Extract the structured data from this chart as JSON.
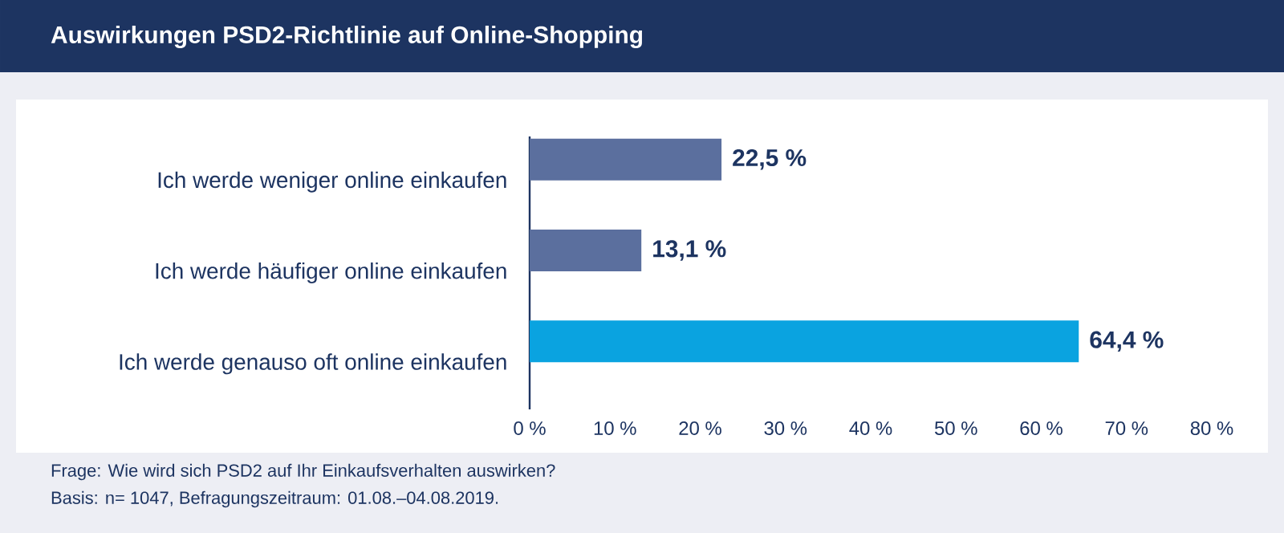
{
  "chart_data": {
    "type": "bar",
    "orientation": "horizontal",
    "title": "Auswirkungen PSD2-Richtlinie auf Online-Shopping",
    "categories": [
      "Ich werde weniger online einkaufen",
      "Ich werde häufiger online einkaufen",
      "Ich werde genauso oft online einkaufen"
    ],
    "values": [
      22.5,
      13.1,
      64.4
    ],
    "value_labels": [
      "22,5 %",
      "13,1 %",
      "64,4 %"
    ],
    "colors": [
      "#5b6f9e",
      "#5b6f9e",
      "#0aa3e0"
    ],
    "xlim": [
      0,
      80
    ],
    "xticks": [
      {
        "value": 0,
        "label": "0 %"
      },
      {
        "value": 10,
        "label": "10 %"
      },
      {
        "value": 20,
        "label": "20 %"
      },
      {
        "value": 30,
        "label": "30 %"
      },
      {
        "value": 40,
        "label": "40 %"
      },
      {
        "value": 50,
        "label": "50 %"
      },
      {
        "value": 60,
        "label": "60 %"
      },
      {
        "value": 70,
        "label": "70 %"
      },
      {
        "value": 80,
        "label": "80 %"
      }
    ],
    "grid": false,
    "annotations": [
      "Frage: Wie wird sich PSD2 auf Ihr Einkaufsverhalten auswirken?",
      "Basis: n= 1047, Befragungszeitraum: 01.08.–04.08.2019."
    ]
  }
}
